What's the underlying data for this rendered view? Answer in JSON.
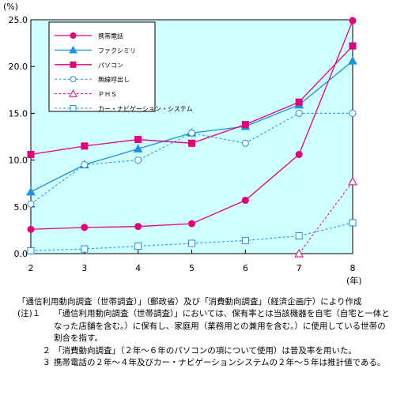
{
  "chart_data": {
    "type": "line",
    "ylabel": "(%)",
    "x_unit": "(年)",
    "x": [
      2,
      3,
      4,
      5,
      6,
      7,
      8
    ],
    "ylim": [
      0,
      25
    ],
    "yticks": [
      "0.0",
      "5.0",
      "10.0",
      "15.0",
      "20.0",
      "25.0"
    ],
    "xticks": [
      "2",
      "3",
      "4",
      "5",
      "6",
      "7",
      "8"
    ],
    "grid": false,
    "legend_position": "top-left inside",
    "series": [
      {
        "name": "携帯電話",
        "color": "#e0007f",
        "marker": "circle-filled",
        "dash": false,
        "values": [
          2.6,
          2.8,
          2.9,
          3.2,
          5.7,
          10.6,
          24.9
        ]
      },
      {
        "name": "ファクシミリ",
        "color": "#1e90e6",
        "marker": "triangle-filled",
        "dash": false,
        "values": [
          6.6,
          9.5,
          11.2,
          12.9,
          13.6,
          15.9,
          20.6
        ]
      },
      {
        "name": "パソコン",
        "color": "#e0007f",
        "marker": "square-filled",
        "dash": false,
        "values": [
          10.6,
          11.5,
          12.2,
          11.8,
          13.8,
          16.2,
          22.2
        ]
      },
      {
        "name": "無線呼出し",
        "color": "#1e90e6",
        "marker": "circle-open",
        "dash": true,
        "values": [
          5.3,
          9.5,
          10.0,
          12.9,
          11.8,
          15.0,
          15.0
        ]
      },
      {
        "name": "ＰＨＳ",
        "color": "#e0007f",
        "marker": "triangle-open",
        "dash": true,
        "values": [
          null,
          null,
          null,
          null,
          null,
          0.0,
          7.7
        ]
      },
      {
        "name": "カー・ナビゲーション・システム",
        "color": "#1e90e6",
        "marker": "square-open",
        "dash": true,
        "values": [
          0.3,
          0.5,
          0.8,
          1.1,
          1.4,
          1.9,
          3.3
        ]
      }
    ]
  },
  "notes": {
    "source": "「通信利用動向調査（世帯調査）」（郵政省）及び「消費動向調査」（経済企画庁）により作成",
    "note1_head": "(注)１",
    "note1": "「通信利用動向調査（世帯調査）」においては、保有率とは当該機器を自宅（自宅と一体となった店舗を含む。）に保有し、家庭用（業務用との兼用を含む。）に使用している世帯の割合を指す。",
    "note2_head": "２",
    "note2": "「消費動向調査」（２年～６年のパソコンの項について使用）は普及率を用いた。",
    "note3_head": "３",
    "note3": "携帯電話の２年～４年及びカー・ナビゲーションシステムの２年～５年は推計値である。"
  }
}
